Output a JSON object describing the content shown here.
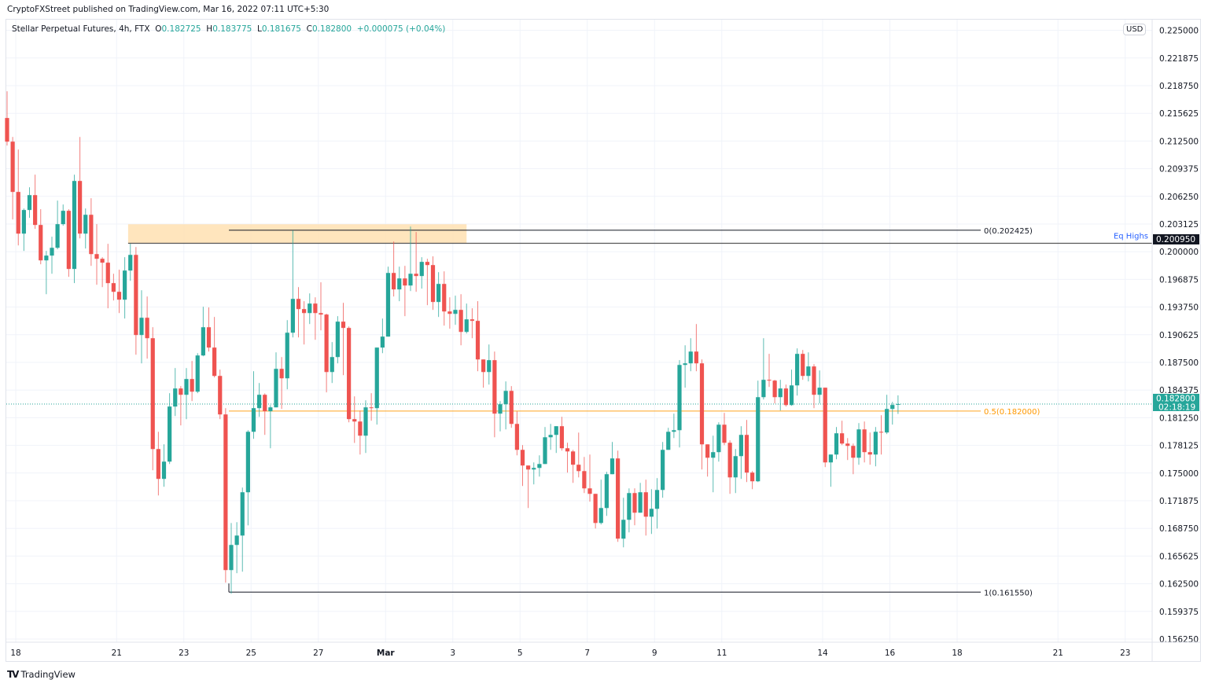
{
  "publisher": "CryptoFXStreet published on TradingView.com, Mar 16, 2022 07:11 UTC+5:30",
  "legend": {
    "symbol": "Stellar Perpetual Futures, 4h, FTX",
    "o_label": "O",
    "o": "0.182725",
    "h_label": "H",
    "h": "0.183775",
    "l_label": "L",
    "l": "0.181675",
    "c_label": "C",
    "c": "0.182800",
    "change": "+0.000075 (+0.04%)"
  },
  "currency_badge": "USD",
  "footer": {
    "logo": "TV",
    "brand": "TradingView"
  },
  "colors": {
    "up": "#26a69a",
    "down": "#ef5350",
    "fib_mid": "#ff9800",
    "eq_highs": "#2962ff",
    "zone": "#ffe0b2",
    "grid": "#f0f3fa"
  },
  "chart_data": {
    "type": "candlestick",
    "title": "Stellar Perpetual Futures, 4h, FTX",
    "ylim": [
      0.15625,
      0.225
    ],
    "grid": true,
    "y_ticks": [
      "0.225000",
      "0.221875",
      "0.218750",
      "0.215625",
      "0.212500",
      "0.209375",
      "0.206250",
      "0.203125",
      "0.200000",
      "0.196875",
      "0.193750",
      "0.190625",
      "0.187500",
      "0.184375",
      "0.181250",
      "0.178125",
      "0.175000",
      "0.171875",
      "0.168750",
      "0.165625",
      "0.162500",
      "0.159375",
      "0.156250"
    ],
    "x_ticks": [
      {
        "label": "18",
        "day": 0
      },
      {
        "label": "21",
        "day": 3
      },
      {
        "label": "23",
        "day": 5
      },
      {
        "label": "25",
        "day": 7
      },
      {
        "label": "27",
        "day": 9
      },
      {
        "label": "Mar",
        "day": 11
      },
      {
        "label": "3",
        "day": 13
      },
      {
        "label": "5",
        "day": 15
      },
      {
        "label": "7",
        "day": 17
      },
      {
        "label": "9",
        "day": 19
      },
      {
        "label": "11",
        "day": 21
      },
      {
        "label": "14",
        "day": 24
      },
      {
        "label": "16",
        "day": 26
      },
      {
        "label": "18",
        "day": 28
      },
      {
        "label": "21",
        "day": 31
      },
      {
        "label": "23",
        "day": 33
      }
    ],
    "ohlc_fields": [
      "open",
      "high",
      "low",
      "close"
    ],
    "candles": [
      [
        0.2151,
        0.21812,
        0.21199,
        0.21243
      ],
      [
        0.21243,
        0.21296,
        0.20364,
        0.20675
      ],
      [
        0.20675,
        0.21154,
        0.20071,
        0.20204
      ],
      [
        0.20204,
        0.20488,
        0.20009,
        0.20471
      ],
      [
        0.20471,
        0.20728,
        0.20382,
        0.20639
      ],
      [
        0.20639,
        0.2087,
        0.20258,
        0.20302
      ],
      [
        0.20302,
        0.2048,
        0.19858,
        0.19902
      ],
      [
        0.19902,
        0.20009,
        0.1952,
        0.19956
      ],
      [
        0.19956,
        0.20169,
        0.19751,
        0.20044
      ],
      [
        0.20044,
        0.20577,
        0.20027,
        0.20311
      ],
      [
        0.20311,
        0.20533,
        0.20293,
        0.20462
      ],
      [
        0.20462,
        0.2048,
        0.19716,
        0.19805
      ],
      [
        0.19805,
        0.2087,
        0.19645,
        0.20799
      ],
      [
        0.20799,
        0.21296,
        0.20151,
        0.20204
      ],
      [
        0.20204,
        0.20488,
        0.20036,
        0.20417
      ],
      [
        0.20417,
        0.20604,
        0.1984,
        0.19973
      ],
      [
        0.19973,
        0.20311,
        0.19627,
        0.1992
      ],
      [
        0.1992,
        0.19938,
        0.196,
        0.19876
      ],
      [
        0.19876,
        0.20089,
        0.19361,
        0.19645
      ],
      [
        0.19645,
        0.19751,
        0.19449,
        0.19547
      ],
      [
        0.19547,
        0.19796,
        0.19307,
        0.19458
      ],
      [
        0.19458,
        0.19938,
        0.19245,
        0.19787
      ],
      [
        0.19787,
        0.20089,
        0.19671,
        0.19964
      ],
      [
        0.19964,
        0.20053,
        0.18837,
        0.19059
      ],
      [
        0.19059,
        0.19565,
        0.18739,
        0.19254
      ],
      [
        0.19254,
        0.19494,
        0.18792,
        0.19023
      ],
      [
        0.19023,
        0.19147,
        0.17531,
        0.17771
      ],
      [
        0.17771,
        0.17966,
        0.17247,
        0.17434
      ],
      [
        0.17434,
        0.17824,
        0.17345,
        0.17629
      ],
      [
        0.17629,
        0.18402,
        0.17602,
        0.18251
      ],
      [
        0.18251,
        0.18686,
        0.18144,
        0.18455
      ],
      [
        0.18455,
        0.18482,
        0.18038,
        0.18384
      ],
      [
        0.18384,
        0.18686,
        0.18109,
        0.18562
      ],
      [
        0.18562,
        0.18766,
        0.18313,
        0.18419
      ],
      [
        0.18419,
        0.18854,
        0.18402,
        0.18828
      ],
      [
        0.18828,
        0.19378,
        0.18819,
        0.19147
      ],
      [
        0.19147,
        0.1937,
        0.18872,
        0.18917
      ],
      [
        0.18917,
        0.19263,
        0.1858,
        0.18597
      ],
      [
        0.18597,
        0.18668,
        0.18109,
        0.18162
      ],
      [
        0.18162,
        0.18233,
        0.16262,
        0.16404
      ],
      [
        0.16404,
        0.16936,
        0.16137,
        0.16688
      ],
      [
        0.16688,
        0.16945,
        0.16369,
        0.16794
      ],
      [
        0.16794,
        0.17336,
        0.16386,
        0.17283
      ],
      [
        0.17283,
        0.17984,
        0.16909,
        0.17966
      ],
      [
        0.17966,
        0.1865,
        0.17887,
        0.18233
      ],
      [
        0.18233,
        0.18517,
        0.18135,
        0.18384
      ],
      [
        0.18384,
        0.184,
        0.17931,
        0.18198
      ],
      [
        0.18198,
        0.18268,
        0.1778,
        0.18242
      ],
      [
        0.18242,
        0.18863,
        0.18242,
        0.18677
      ],
      [
        0.18677,
        0.1881,
        0.18224,
        0.1857
      ],
      [
        0.1857,
        0.19227,
        0.18446,
        0.19085
      ],
      [
        0.19085,
        0.2024,
        0.19032,
        0.19467
      ],
      [
        0.19467,
        0.196,
        0.19032,
        0.19352
      ],
      [
        0.19352,
        0.19441,
        0.18952,
        0.19307
      ],
      [
        0.19307,
        0.19529,
        0.19183,
        0.19414
      ],
      [
        0.19414,
        0.19485,
        0.19005,
        0.19307
      ],
      [
        0.19307,
        0.19654,
        0.19112,
        0.1929
      ],
      [
        0.1929,
        0.193,
        0.18411,
        0.18641
      ],
      [
        0.18641,
        0.18979,
        0.18517,
        0.1881
      ],
      [
        0.1881,
        0.19272,
        0.18739,
        0.1921
      ],
      [
        0.1921,
        0.19423,
        0.18606,
        0.19139
      ],
      [
        0.19139,
        0.19156,
        0.18073,
        0.18109
      ],
      [
        0.18109,
        0.18366,
        0.1784,
        0.18082
      ],
      [
        0.18082,
        0.18206,
        0.17709,
        0.17922
      ],
      [
        0.17922,
        0.18322,
        0.17727,
        0.18242
      ],
      [
        0.18242,
        0.18402,
        0.18091,
        0.18233
      ],
      [
        0.18233,
        0.18917,
        0.18047,
        0.18917
      ],
      [
        0.18917,
        0.19245,
        0.18854,
        0.19041
      ],
      [
        0.19041,
        0.19831,
        0.19041,
        0.1976
      ],
      [
        0.1976,
        0.20115,
        0.19494,
        0.19574
      ],
      [
        0.19574,
        0.19831,
        0.19441,
        0.19698
      ],
      [
        0.19698,
        0.1984,
        0.19272,
        0.19618
      ],
      [
        0.19618,
        0.20284,
        0.19556,
        0.19751
      ],
      [
        0.19751,
        0.20222,
        0.19547,
        0.19725
      ],
      [
        0.19725,
        0.19938,
        0.19583,
        0.19885
      ],
      [
        0.19885,
        0.1992,
        0.19396,
        0.19849
      ],
      [
        0.19849,
        0.19947,
        0.19343,
        0.19432
      ],
      [
        0.19432,
        0.19769,
        0.19263,
        0.19636
      ],
      [
        0.19636,
        0.19778,
        0.19165,
        0.19325
      ],
      [
        0.19325,
        0.19485,
        0.1913,
        0.19298
      ],
      [
        0.19298,
        0.19503,
        0.19174,
        0.19343
      ],
      [
        0.19343,
        0.1952,
        0.18943,
        0.19094
      ],
      [
        0.19094,
        0.19414,
        0.19076,
        0.19236
      ],
      [
        0.19236,
        0.19361,
        0.19023,
        0.19219
      ],
      [
        0.19219,
        0.19441,
        0.1865,
        0.18783
      ],
      [
        0.18783,
        0.18783,
        0.18464,
        0.18641
      ],
      [
        0.18641,
        0.18952,
        0.18499,
        0.18775
      ],
      [
        0.18775,
        0.18872,
        0.17904,
        0.18171
      ],
      [
        0.18171,
        0.18313,
        0.17971,
        0.18277
      ],
      [
        0.18277,
        0.18535,
        0.17993,
        0.18428
      ],
      [
        0.18428,
        0.18482,
        0.18011,
        0.18055
      ],
      [
        0.18055,
        0.18197,
        0.177,
        0.17762
      ],
      [
        0.17762,
        0.17816,
        0.17354,
        0.17585
      ],
      [
        0.17585,
        0.17585,
        0.17105,
        0.1754
      ],
      [
        0.1754,
        0.1762,
        0.17372,
        0.17558
      ],
      [
        0.17558,
        0.177,
        0.1746,
        0.17602
      ],
      [
        0.17602,
        0.1802,
        0.17602,
        0.17904
      ],
      [
        0.17904,
        0.18055,
        0.17762,
        0.17931
      ],
      [
        0.17931,
        0.18029,
        0.17727,
        0.18029
      ],
      [
        0.18029,
        0.18135,
        0.17753,
        0.1778
      ],
      [
        0.1778,
        0.17842,
        0.17505,
        0.17744
      ],
      [
        0.17744,
        0.17762,
        0.17389,
        0.17594
      ],
      [
        0.17594,
        0.17957,
        0.17451,
        0.17522
      ],
      [
        0.17522,
        0.17682,
        0.17274,
        0.17327
      ],
      [
        0.17327,
        0.17709,
        0.17176,
        0.17265
      ],
      [
        0.17265,
        0.17265,
        0.16874,
        0.16936
      ],
      [
        0.16936,
        0.17425,
        0.16919,
        0.17105
      ],
      [
        0.17105,
        0.17514,
        0.17016,
        0.17487
      ],
      [
        0.17487,
        0.17851,
        0.17487,
        0.17665
      ],
      [
        0.17665,
        0.17753,
        0.16723,
        0.16759
      ],
      [
        0.16759,
        0.17221,
        0.16661,
        0.16972
      ],
      [
        0.16972,
        0.17327,
        0.1683,
        0.17274
      ],
      [
        0.17274,
        0.17327,
        0.1691,
        0.17052
      ],
      [
        0.17052,
        0.17389,
        0.17052,
        0.17283
      ],
      [
        0.17283,
        0.17425,
        0.16794,
        0.17007
      ],
      [
        0.17007,
        0.17318,
        0.16812,
        0.17096
      ],
      [
        0.17096,
        0.17443,
        0.16874,
        0.17309
      ],
      [
        0.17309,
        0.17851,
        0.17221,
        0.17762
      ],
      [
        0.17762,
        0.18011,
        0.17762,
        0.17966
      ],
      [
        0.17966,
        0.18171,
        0.17895,
        0.17984
      ],
      [
        0.17984,
        0.18775,
        0.17789,
        0.18721
      ],
      [
        0.18721,
        0.18943,
        0.18464,
        0.18739
      ],
      [
        0.18739,
        0.19023,
        0.1865,
        0.18872
      ],
      [
        0.18872,
        0.19183,
        0.1865,
        0.18739
      ],
      [
        0.18739,
        0.18783,
        0.1754,
        0.17824
      ],
      [
        0.17824,
        0.17824,
        0.1746,
        0.17673
      ],
      [
        0.17673,
        0.17922,
        0.17283,
        0.17736
      ],
      [
        0.17736,
        0.18073,
        0.17629,
        0.18046
      ],
      [
        0.18046,
        0.1818,
        0.17816,
        0.17842
      ],
      [
        0.17842,
        0.17869,
        0.17265,
        0.17451
      ],
      [
        0.17451,
        0.17771,
        0.17274,
        0.17691
      ],
      [
        0.17691,
        0.18029,
        0.17434,
        0.17931
      ],
      [
        0.17931,
        0.181,
        0.17398,
        0.17505
      ],
      [
        0.17505,
        0.17523,
        0.17318,
        0.17407
      ],
      [
        0.17407,
        0.18544,
        0.17398,
        0.18357
      ],
      [
        0.18357,
        0.19023,
        0.18331,
        0.18553
      ],
      [
        0.18553,
        0.18846,
        0.18473,
        0.18544
      ],
      [
        0.18544,
        0.18553,
        0.18286,
        0.18357
      ],
      [
        0.18357,
        0.18553,
        0.18206,
        0.18455
      ],
      [
        0.18455,
        0.18499,
        0.18251,
        0.18268
      ],
      [
        0.18268,
        0.18668,
        0.1826,
        0.1849
      ],
      [
        0.1849,
        0.18908,
        0.18375,
        0.18846
      ],
      [
        0.18846,
        0.1889,
        0.18553,
        0.18597
      ],
      [
        0.18597,
        0.18863,
        0.18535,
        0.18704
      ],
      [
        0.18704,
        0.1873,
        0.18233,
        0.18384
      ],
      [
        0.18384,
        0.18659,
        0.18286,
        0.18464
      ],
      [
        0.18464,
        0.18464,
        0.17567,
        0.1762
      ],
      [
        0.1762,
        0.17709,
        0.17345,
        0.17709
      ],
      [
        0.17709,
        0.1802,
        0.17656,
        0.17949
      ],
      [
        0.17949,
        0.18091,
        0.17816,
        0.17833
      ],
      [
        0.17833,
        0.17895,
        0.17647,
        0.17807
      ],
      [
        0.17807,
        0.17833,
        0.17487,
        0.17673
      ],
      [
        0.17673,
        0.18064,
        0.17594,
        0.17993
      ],
      [
        0.17993,
        0.18082,
        0.1762,
        0.17736
      ],
      [
        0.17736,
        0.17958,
        0.17594,
        0.17709
      ],
      [
        0.17709,
        0.1802,
        0.17576,
        0.17966
      ],
      [
        0.17966,
        0.18153,
        0.17709,
        0.17958
      ],
      [
        0.17958,
        0.18384,
        0.1794,
        0.18224
      ],
      [
        0.18224,
        0.18304,
        0.18047,
        0.18269
      ],
      [
        0.182725,
        0.183775,
        0.181675,
        0.1828
      ]
    ],
    "annotations": {
      "supply_zone": {
        "price_top": 0.2031,
        "price_bottom": 0.20095
      },
      "eq_highs": {
        "label": "Eq Highs",
        "price": 0.20095,
        "axis_tag": "0.200950"
      },
      "fib_levels": [
        {
          "level": 0,
          "price": 0.202425,
          "label": "0(0.202425)"
        },
        {
          "level": 0.5,
          "price": 0.182,
          "label": "0.5(0.182000)"
        },
        {
          "level": 1,
          "price": 0.16155,
          "label": "1(0.161550)"
        }
      ],
      "last_price": {
        "price": 0.1828,
        "axis_tag": "0.182800",
        "countdown": "02:18:19"
      }
    }
  }
}
